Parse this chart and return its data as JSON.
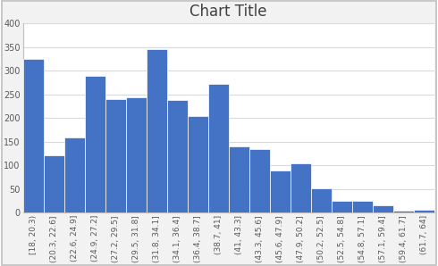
{
  "title": "Chart Title",
  "bar_color": "#4472C4",
  "edge_color": "#ffffff",
  "categories": [
    "[18, 20.3)",
    "(20.3, 22.6]",
    "(22.6, 24.9]",
    "(24.9, 27.2]",
    "(27.2, 29.5]",
    "(29.5, 31.8]",
    "(31.8, 34.1]",
    "(34.1, 36.4]",
    "(36.4, 38.7]",
    "(38.7, 41]",
    "(41, 43.3]",
    "(43.3, 45.6]",
    "(45.6, 47.9]",
    "(47.9, 50.2]",
    "(50.2, 52.5]",
    "(52.5, 54.8]",
    "(54.8, 57.1]",
    "(57.1, 59.4]",
    "(59.4, 61.7]",
    "(61.7, 64]"
  ],
  "values": [
    325,
    122,
    160,
    290,
    240,
    244,
    346,
    238,
    205,
    273,
    140,
    135,
    90,
    105,
    51,
    25,
    25,
    15,
    5,
    7
  ],
  "ylim": [
    0,
    400
  ],
  "yticks": [
    0,
    50,
    100,
    150,
    200,
    250,
    300,
    350,
    400
  ],
  "grid_color": "#d9d9d9",
  "outer_bg": "#f2f2f2",
  "plot_bg": "#ffffff",
  "title_fontsize": 12,
  "tick_fontsize": 6.5,
  "title_color": "#404040",
  "tick_color": "#595959",
  "spine_color": "#bfbfbf",
  "border_color": "#bfbfbf"
}
